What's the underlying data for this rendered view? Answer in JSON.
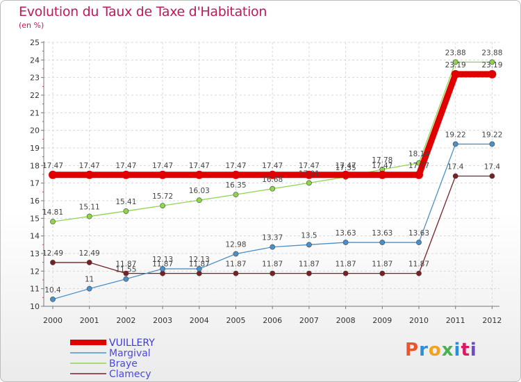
{
  "title": "Evolution du Taux de Taxe d'Habitation",
  "subtitle": "(en %)",
  "logo": {
    "text": "Proxiti",
    "colors": [
      "#e8562a",
      "#2a8fd8",
      "#f2a21b",
      "#4caf50",
      "#2a8fd8",
      "#d81b60",
      "#6d4cc0"
    ]
  },
  "chart_data": {
    "type": "line",
    "x": [
      "2000",
      "2001",
      "2002",
      "2003",
      "2004",
      "2005",
      "2006",
      "2007",
      "2008",
      "2009",
      "2010",
      "2011",
      "2012"
    ],
    "yticks": [
      "10",
      "11",
      "12",
      "13",
      "14",
      "15",
      "16",
      "17",
      "18",
      "19",
      "20",
      "21",
      "22",
      "23",
      "24",
      "25"
    ],
    "ylim": [
      10,
      25
    ],
    "grid": true,
    "legend_position": "bottom-left",
    "series": [
      {
        "name": "VUILLERY",
        "color": "#e00000",
        "values": [
          17.47,
          17.47,
          17.47,
          17.47,
          17.47,
          17.47,
          17.47,
          17.47,
          17.47,
          17.47,
          17.47,
          23.19,
          23.19
        ],
        "labels": [
          "17.47",
          "17.47",
          "17.47",
          "17.47",
          "17.47",
          "17.47",
          "17.47",
          "17.47",
          "17.47",
          "17.47",
          "17.47",
          "23.19",
          "23.19"
        ]
      },
      {
        "name": "Margival",
        "color": "#4a90c8",
        "values": [
          10.4,
          11,
          11.55,
          12.13,
          12.13,
          12.98,
          13.37,
          13.5,
          13.63,
          13.63,
          13.63,
          19.22,
          19.22
        ],
        "labels": [
          "10.4",
          "11",
          "11.55",
          "12.13",
          "12.13",
          "12.98",
          "13.37",
          "13.5",
          "13.63",
          "13.63",
          "13.63",
          "19.22",
          "19.22"
        ]
      },
      {
        "name": "Braye",
        "color": "#8fd44a",
        "values": [
          14.81,
          15.11,
          15.41,
          15.72,
          16.03,
          16.35,
          16.68,
          17.01,
          17.35,
          17.78,
          18.14,
          23.88,
          23.88
        ],
        "labels": [
          "14.81",
          "15.11",
          "15.41",
          "15.72",
          "16.03",
          "16.35",
          "16.68",
          "17.01",
          "17.35",
          "17.78",
          "18.14",
          "23.88",
          "23.88"
        ]
      },
      {
        "name": "Clamecy",
        "color": "#7a1f24",
        "values": [
          12.49,
          12.49,
          11.87,
          11.87,
          11.87,
          11.87,
          11.87,
          11.87,
          11.87,
          11.87,
          11.87,
          17.4,
          17.4
        ],
        "labels": [
          "12.49",
          "12.49",
          "11.87",
          "11.87",
          "11.87",
          "11.87",
          "11.87",
          "11.87",
          "11.87",
          "11.87",
          "11.87",
          "17.4",
          "17.4"
        ]
      }
    ]
  }
}
